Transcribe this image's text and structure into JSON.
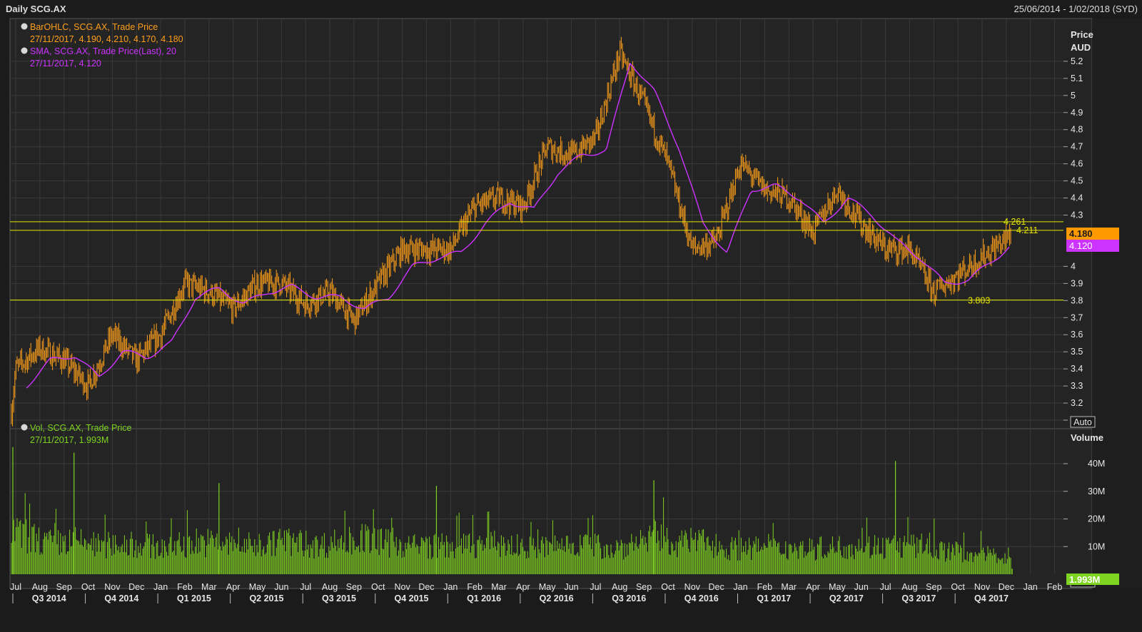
{
  "header": {
    "title": "Daily SCG.AX",
    "date_range": "25/06/2014 - 1/02/2018 (SYD)"
  },
  "colors": {
    "background": "#1b1b1b",
    "panel": "#242424",
    "grid": "#3a3a3a",
    "ohlc": "#ff9f1a",
    "sma": "#cc33ff",
    "hline": "#e6e600",
    "volume": "#7fd321",
    "last_price_badge": "#ff9900",
    "sma_badge": "#cc33ff",
    "volume_badge": "#7fd321"
  },
  "price_panel": {
    "axis_title": "Price",
    "axis_unit": "AUD",
    "auto_label": "Auto",
    "legend": [
      {
        "icon": "info-icon",
        "name": "BarOHLC, SCG.AX, Trade Price",
        "values": "27/11/2017, 4.190, 4.210, 4.170, 4.180"
      },
      {
        "icon": "info-icon",
        "name": "SMA, SCG.AX, Trade Price(Last),  20",
        "values": "27/11/2017, 4.120"
      }
    ],
    "last_price": "4.180",
    "sma_last": "4.120"
  },
  "volume_panel": {
    "axis_title": "Volume",
    "auto_label": "Auto",
    "legend": [
      {
        "icon": "info-icon",
        "name": "Vol, SCG.AX, Trade Price",
        "values": "27/11/2017, 1.993M"
      }
    ],
    "last_volume": "1.993M"
  },
  "chart_data": [
    {
      "type": "line",
      "title": "Daily SCG.AX",
      "ylabel": "Price AUD",
      "ylim": [
        3.05,
        5.45
      ],
      "y_ticks": [
        3.1,
        3.2,
        3.3,
        3.4,
        3.5,
        3.6,
        3.7,
        3.8,
        3.9,
        4.0,
        4.3,
        4.4,
        4.5,
        4.6,
        4.7,
        4.8,
        4.9,
        5.0,
        5.1,
        5.2
      ],
      "y_tick_labels": [
        "3.1",
        "3.2",
        "3.3",
        "3.4",
        "3.5",
        "3.6",
        "3.7",
        "3.8",
        "3.9",
        "4",
        "4.3",
        "4.4",
        "4.5",
        "4.6",
        "4.7",
        "4.8",
        "4.9",
        "5",
        "5.1",
        "5.2"
      ],
      "x_labels": [
        "Jul",
        "Aug",
        "Sep",
        "Oct",
        "Nov",
        "Dec",
        "Jan",
        "Feb",
        "Mar",
        "Apr",
        "May",
        "Jun",
        "Jul",
        "Aug",
        "Sep",
        "Oct",
        "Nov",
        "Dec",
        "Jan",
        "Feb",
        "Mar",
        "Apr",
        "May",
        "Jun",
        "Jul",
        "Aug",
        "Sep",
        "Oct",
        "Nov",
        "Dec",
        "Jan",
        "Feb",
        "Mar",
        "Apr",
        "May",
        "Jun",
        "Jul",
        "Aug",
        "Sep",
        "Oct",
        "Nov",
        "Dec",
        "Jan",
        "Feb"
      ],
      "quarter_labels": [
        "Q3 2014",
        "Q4 2014",
        "Q1 2015",
        "Q2 2015",
        "Q3 2015",
        "Q4 2015",
        "Q1 2016",
        "Q2 2016",
        "Q3 2016",
        "Q4 2016",
        "Q1 2017",
        "Q2 2017",
        "Q3 2017",
        "Q4 2017"
      ],
      "series": [
        {
          "name": "BarOHLC, SCG.AX, Trade Price",
          "x": [
            "Jun 2014",
            "Jul 2014",
            "Aug 2014",
            "Sep 2014",
            "Oct 2014",
            "Nov 2014",
            "Dec 2014",
            "Jan 2015",
            "Feb 2015",
            "Mar 2015",
            "Apr 2015",
            "May 2015",
            "Jun 2015",
            "Jul 2015",
            "Aug 2015",
            "Sep 2015",
            "Oct 2015",
            "Nov 2015",
            "Dec 2015",
            "Jan 2016",
            "Feb 2016",
            "Mar 2016",
            "Apr 2016",
            "May 2016",
            "Jun 2016",
            "Jul 2016",
            "Aug 2016",
            "Sep 2016",
            "Oct 2016",
            "Nov 2016",
            "Dec 2016",
            "Jan 2017",
            "Feb 2017",
            "Mar 2017",
            "Apr 2017",
            "May 2017",
            "Jun 2017",
            "Jul 2017",
            "Aug 2017",
            "Sep 2017",
            "Oct 2017",
            "Nov 2017"
          ],
          "close": [
            3.15,
            3.4,
            3.52,
            3.45,
            3.3,
            3.6,
            3.45,
            3.6,
            3.9,
            3.85,
            3.75,
            3.9,
            3.9,
            3.78,
            3.85,
            3.68,
            3.9,
            4.1,
            4.1,
            4.1,
            4.35,
            4.4,
            4.35,
            4.7,
            4.65,
            4.75,
            5.25,
            4.95,
            4.6,
            4.1,
            4.15,
            4.6,
            4.45,
            4.4,
            4.2,
            4.45,
            4.25,
            4.1,
            4.1,
            3.85,
            3.95,
            4.18
          ]
        },
        {
          "name": "SMA, SCG.AX, Trade Price(Last),  20",
          "x": [
            "Jul 2014",
            "Aug 2014",
            "Sep 2014",
            "Oct 2014",
            "Nov 2014",
            "Dec 2014",
            "Jan 2015",
            "Feb 2015",
            "Mar 2015",
            "Apr 2015",
            "May 2015",
            "Jun 2015",
            "Jul 2015",
            "Aug 2015",
            "Sep 2015",
            "Oct 2015",
            "Nov 2015",
            "Dec 2015",
            "Jan 2016",
            "Feb 2016",
            "Mar 2016",
            "Apr 2016",
            "May 2016",
            "Jun 2016",
            "Jul 2016",
            "Aug 2016",
            "Sep 2016",
            "Oct 2016",
            "Nov 2016",
            "Dec 2016",
            "Jan 2017",
            "Feb 2017",
            "Mar 2017",
            "Apr 2017",
            "May 2017",
            "Jun 2017",
            "Jul 2017",
            "Aug 2017",
            "Sep 2017",
            "Oct 2017",
            "Nov 2017"
          ],
          "values": [
            3.3,
            3.45,
            3.48,
            3.35,
            3.5,
            3.47,
            3.55,
            3.82,
            3.87,
            3.78,
            3.85,
            3.88,
            3.82,
            3.82,
            3.75,
            3.82,
            4.0,
            4.05,
            4.08,
            4.25,
            4.38,
            4.33,
            4.55,
            4.65,
            4.68,
            5.2,
            5.02,
            4.7,
            4.25,
            4.08,
            4.45,
            4.47,
            4.4,
            4.25,
            4.4,
            4.3,
            4.15,
            4.05,
            3.9,
            3.92,
            4.12
          ]
        }
      ],
      "horizontal_lines": [
        {
          "value": 4.261,
          "label": "4.261"
        },
        {
          "value": 4.211,
          "label": "4.211"
        },
        {
          "value": 3.803,
          "label": "3.803"
        }
      ]
    },
    {
      "type": "bar",
      "title": "Vol, SCG.AX, Trade Price",
      "ylabel": "Volume",
      "ylim": [
        0,
        48000000
      ],
      "y_ticks": [
        10000000,
        20000000,
        30000000,
        40000000
      ],
      "y_tick_labels": [
        "10M",
        "20M",
        "30M",
        "40M"
      ],
      "series": [
        {
          "name": "Vol, SCG.AX, Trade Price",
          "x": [
            "Jul 2014",
            "Aug 2014",
            "Sep 2014",
            "Oct 2014",
            "Nov 2014",
            "Dec 2014",
            "Jan 2015",
            "Feb 2015",
            "Mar 2015",
            "Apr 2015",
            "May 2015",
            "Jun 2015",
            "Jul 2015",
            "Aug 2015",
            "Sep 2015",
            "Oct 2015",
            "Nov 2015",
            "Dec 2015",
            "Jan 2016",
            "Feb 2016",
            "Mar 2016",
            "Apr 2016",
            "May 2016",
            "Jun 2016",
            "Jul 2016",
            "Aug 2016",
            "Sep 2016",
            "Oct 2016",
            "Nov 2016",
            "Dec 2016",
            "Jan 2017",
            "Feb 2017",
            "Mar 2017",
            "Apr 2017",
            "May 2017",
            "Jun 2017",
            "Jul 2017",
            "Aug 2017",
            "Sep 2017",
            "Oct 2017",
            "Nov 2017"
          ],
          "typical_values": [
            18000000,
            13000000,
            14000000,
            12000000,
            13000000,
            12000000,
            11000000,
            14000000,
            13000000,
            12000000,
            13000000,
            14000000,
            12000000,
            14000000,
            15000000,
            13000000,
            12000000,
            12000000,
            12000000,
            13000000,
            12000000,
            11000000,
            12000000,
            13000000,
            11000000,
            12000000,
            16000000,
            13000000,
            14000000,
            11000000,
            11000000,
            11000000,
            11000000,
            11000000,
            12000000,
            12000000,
            12000000,
            12000000,
            10000000,
            9000000,
            8000000
          ],
          "peaks": [
            {
              "x": "Jul 2014",
              "value": 46000000
            },
            {
              "x": "Sep 2014",
              "value": 44000000
            },
            {
              "x": "Mar 2015",
              "value": 33000000
            },
            {
              "x": "Dec 2015",
              "value": 32000000
            },
            {
              "x": "Sep 2016",
              "value": 34000000
            },
            {
              "x": "Jul 2017",
              "value": 41000000
            }
          ],
          "last": 1993000
        }
      ]
    }
  ]
}
